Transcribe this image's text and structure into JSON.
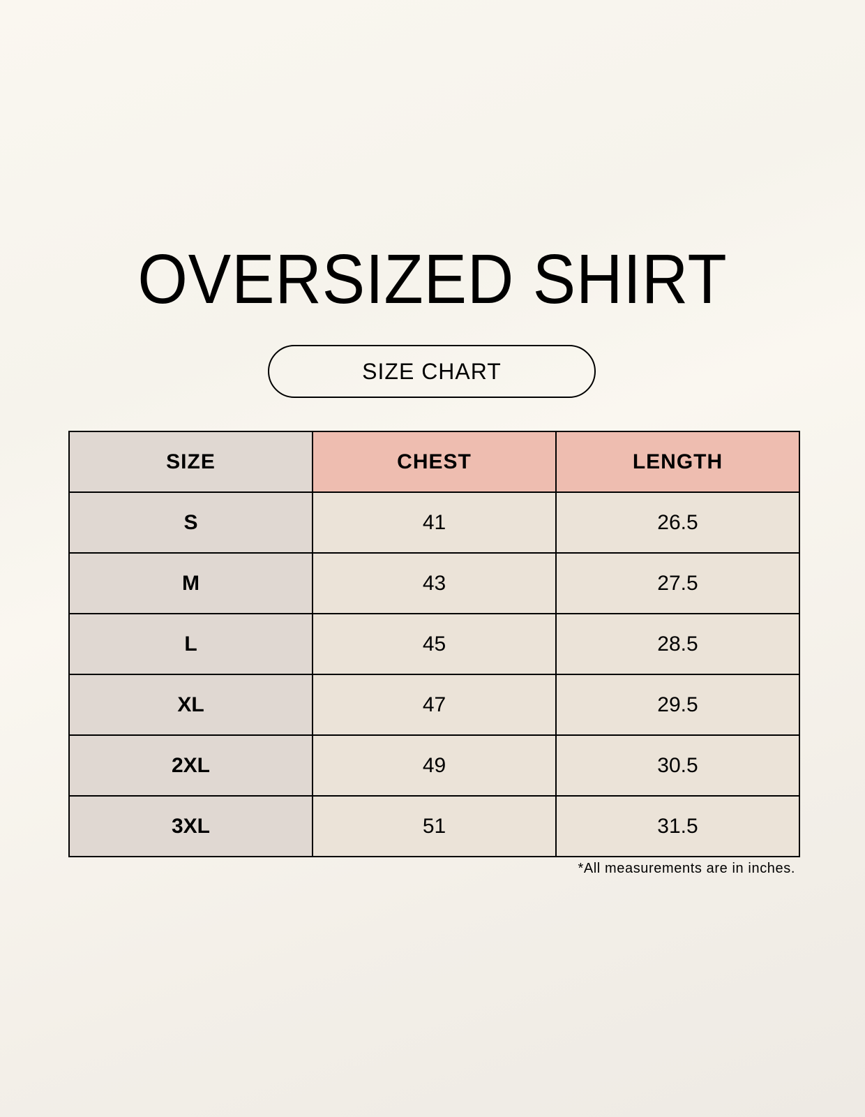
{
  "title": "OVERSIZED SHIRT",
  "subtitle": "SIZE CHART",
  "table": {
    "headers": [
      "SIZE",
      "CHEST",
      "LENGTH"
    ],
    "rows": [
      [
        "S",
        "41",
        "26.5"
      ],
      [
        "M",
        "43",
        "27.5"
      ],
      [
        "L",
        "45",
        "28.5"
      ],
      [
        "XL",
        "47",
        "29.5"
      ],
      [
        "2XL",
        "49",
        "30.5"
      ],
      [
        "3XL",
        "51",
        "31.5"
      ]
    ]
  },
  "note": "*All measurements are in inches.",
  "colors": {
    "size_column": "#e0d8d2",
    "header_accent": "#eebdb0",
    "cell": "#ebe3d8"
  }
}
